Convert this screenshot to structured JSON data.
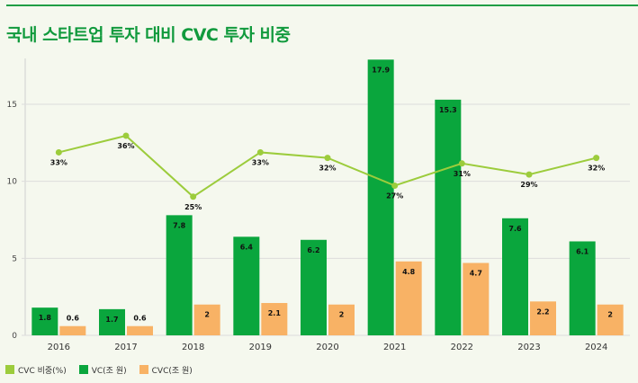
{
  "title": "국내 스타트업 투자 대비 CVC 투자 비중",
  "chart_data": {
    "type": "bar+line",
    "categories": [
      "2016",
      "2017",
      "2018",
      "2019",
      "2020",
      "2021",
      "2022",
      "2023",
      "2024"
    ],
    "ylim": [
      0,
      18
    ],
    "yticks": [
      0,
      5,
      10,
      15
    ],
    "grid": true,
    "legend_position": "bottom-left",
    "series": [
      {
        "name": "CVC 비중(%)",
        "type": "line",
        "color": "#9ccc3c",
        "values": [
          33,
          36,
          25,
          33,
          32,
          27,
          31,
          29,
          32
        ],
        "labels": [
          "33%",
          "36%",
          "25%",
          "33%",
          "32%",
          "27%",
          "31%",
          "29%",
          "32%"
        ]
      },
      {
        "name": "VC(조 원)",
        "type": "bar",
        "color": "#0aa63d",
        "values": [
          1.8,
          1.7,
          7.8,
          6.4,
          6.2,
          17.9,
          15.3,
          7.6,
          6.1
        ]
      },
      {
        "name": "CVC(조 원)",
        "type": "bar",
        "color": "#f8b265",
        "values": [
          0.6,
          0.6,
          2,
          2.1,
          2,
          4.8,
          4.7,
          2.2,
          2
        ]
      }
    ]
  }
}
